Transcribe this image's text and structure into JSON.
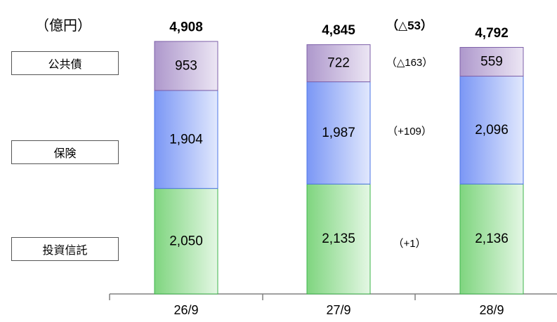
{
  "chart_data": {
    "type": "bar",
    "stacked": true,
    "unit_label": "（億円）",
    "categories": [
      "26/9",
      "27/9",
      "28/9"
    ],
    "series": [
      {
        "name": "投資信託",
        "values": [
          2050,
          2135,
          2136
        ],
        "color": "#90dc90"
      },
      {
        "name": "保険",
        "values": [
          1904,
          1987,
          2096
        ],
        "color": "#8aa4f8"
      },
      {
        "name": "公共債",
        "values": [
          953,
          722,
          559
        ],
        "color": "#b8a4d4"
      }
    ],
    "value_labels": [
      [
        "2,050",
        "2,135",
        "2,136"
      ],
      [
        "1,904",
        "1,987",
        "2,096"
      ],
      [
        "953",
        "722",
        "559"
      ]
    ],
    "totals": [
      4908,
      4845,
      4792
    ],
    "total_labels": [
      "4,908",
      "4,845",
      "4,792"
    ],
    "changes": {
      "total": "（△53）",
      "公共債": "（△163）",
      "保険": "（+109）",
      "投資信託": "（+1）"
    },
    "grid": false,
    "legend": "left"
  }
}
